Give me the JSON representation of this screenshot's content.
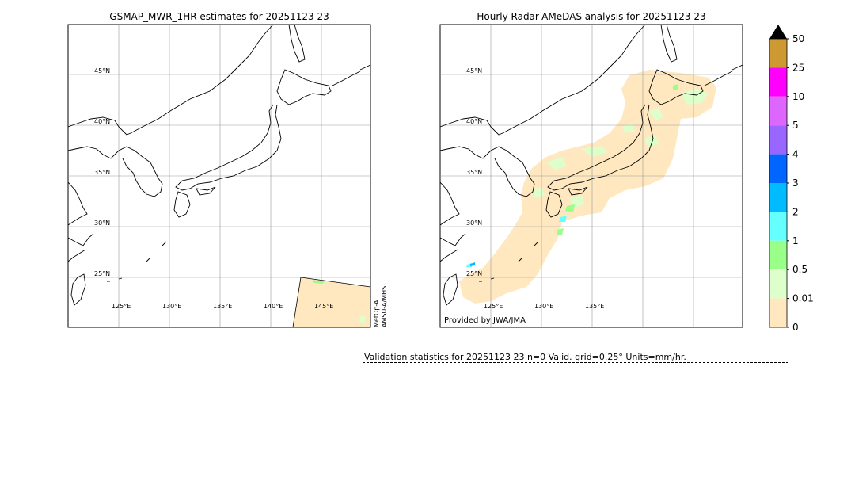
{
  "left_panel": {
    "title": "GSMAP_MWR_1HR estimates for 20251123 23",
    "lat_labels": [
      "45°N",
      "40°N",
      "35°N",
      "30°N",
      "25°N"
    ],
    "lon_labels": [
      "125°E",
      "130°E",
      "135°E",
      "140°E",
      "145°E"
    ],
    "sensor_label_1": "MetOp-A",
    "sensor_label_2": "AMSU-A/MHS"
  },
  "right_panel": {
    "title": "Hourly Radar-AMeDAS analysis for 20251123 23",
    "lat_labels": [
      "45°N",
      "40°N",
      "35°N",
      "30°N",
      "25°N"
    ],
    "lon_labels": [
      "125°E",
      "130°E",
      "135°E"
    ],
    "credit": "Provided by JWA/JMA"
  },
  "colorbar": {
    "labels": [
      "50",
      "25",
      "10",
      "5",
      "4",
      "3",
      "2",
      "1",
      "0.5",
      "0.01",
      "0"
    ],
    "colors": [
      "#cc9933",
      "#ff00ff",
      "#dd66ff",
      "#9966ff",
      "#0066ff",
      "#00bbff",
      "#66ffff",
      "#99ff88",
      "#ddffcc",
      "#ffe8c0"
    ],
    "extend_color": "#000000"
  },
  "map_colors": {
    "light_rain": "#ffe8c0",
    "rain_05": "#ddffcc",
    "rain_1": "#99ff88",
    "rain_2": "#66ffff",
    "rain_3": "#00bbff",
    "coast": "#000000",
    "grid": "#999999"
  },
  "validation": {
    "text": "Validation statistics for 20251123 23  n=0 Valid. grid=0.25° Units=mm/hr."
  }
}
